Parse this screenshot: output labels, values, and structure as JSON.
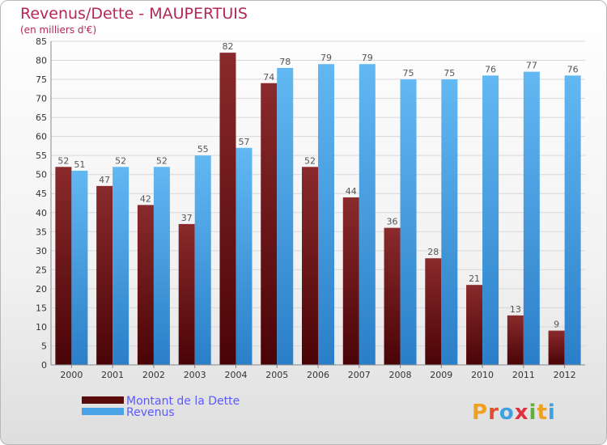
{
  "chart_data": {
    "type": "bar",
    "title": "Revenus/Dette - MAUPERTUIS",
    "subtitle": "(en milliers d'€)",
    "categories": [
      "2000",
      "2001",
      "2002",
      "2003",
      "2004",
      "2005",
      "2006",
      "2007",
      "2008",
      "2009",
      "2010",
      "2011",
      "2012"
    ],
    "series": [
      {
        "name": "Montant de la Dette",
        "values": [
          52,
          47,
          42,
          37,
          82,
          74,
          52,
          44,
          36,
          28,
          21,
          13,
          9
        ],
        "color": "#7a1416"
      },
      {
        "name": "Revenus",
        "values": [
          51,
          52,
          52,
          55,
          57,
          78,
          79,
          79,
          75,
          75,
          76,
          77,
          76
        ],
        "color": "#4aa3e6"
      }
    ],
    "ylim": [
      0,
      85
    ],
    "yticks": [
      0,
      5,
      10,
      15,
      20,
      25,
      30,
      35,
      40,
      45,
      50,
      55,
      60,
      65,
      70,
      75,
      80,
      85
    ],
    "grid": true,
    "legend_placement": "bottom-left"
  },
  "colors": {
    "title": "#b5265a",
    "legend_text": "#5a5aff",
    "axis_text": "#333333",
    "label_text": "#555555",
    "grid": "#d8d8d8"
  },
  "logo": {
    "text": "Proxiti"
  }
}
